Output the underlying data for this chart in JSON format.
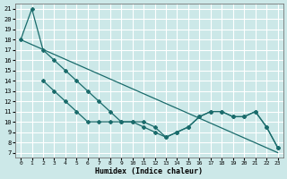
{
  "xlabel": "Humidex (Indice chaleur)",
  "background_color": "#cce8e8",
  "grid_color": "#ffffff",
  "line_color": "#1a6b6b",
  "xlim": [
    -0.5,
    23.5
  ],
  "ylim": [
    6.5,
    21.5
  ],
  "xticks": [
    0,
    1,
    2,
    3,
    4,
    5,
    6,
    7,
    8,
    9,
    10,
    11,
    12,
    13,
    14,
    15,
    16,
    17,
    18,
    19,
    20,
    21,
    22,
    23
  ],
  "yticks": [
    7,
    8,
    9,
    10,
    11,
    12,
    13,
    14,
    15,
    16,
    17,
    18,
    19,
    20,
    21
  ],
  "series1_x": [
    0,
    23
  ],
  "series1_y": [
    18,
    7
  ],
  "series2_x": [
    0,
    1,
    2,
    3,
    4,
    5,
    6,
    7,
    8,
    9,
    10,
    11,
    12,
    13,
    14,
    15,
    16,
    17,
    18,
    19,
    20,
    21,
    22,
    23
  ],
  "series2_y": [
    18,
    21,
    17,
    16,
    15,
    14,
    13,
    12,
    11,
    10,
    10,
    10,
    9.5,
    8.5,
    9,
    9.5,
    10.5,
    11,
    11,
    10.5,
    10.5,
    11,
    9.5,
    7.5
  ],
  "series3_x": [
    2,
    3,
    4,
    5,
    6,
    7,
    8,
    9,
    10,
    11,
    12,
    13,
    14,
    15,
    16,
    17,
    18,
    19,
    20,
    21,
    22,
    23
  ],
  "series3_y": [
    14,
    13,
    12,
    11,
    10,
    10,
    10,
    10,
    10,
    9.5,
    9,
    8.5,
    9,
    9.5,
    10.5,
    11,
    11,
    10.5,
    10.5,
    11,
    9.5,
    7.5
  ]
}
